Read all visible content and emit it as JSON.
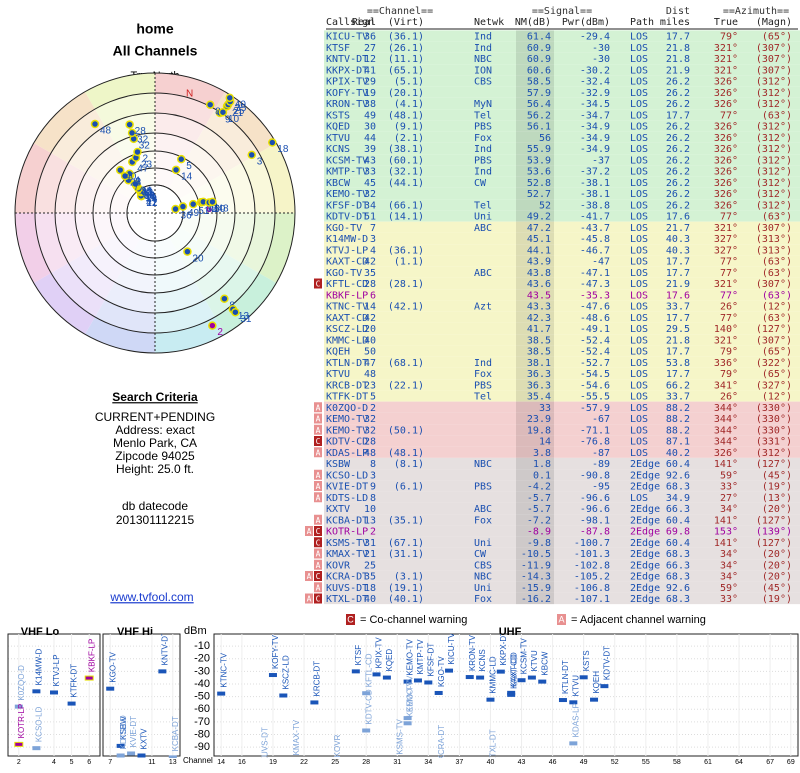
{
  "page": {
    "title": "home",
    "subtitle": "All Channels"
  },
  "polar": {
    "north_label": "TrueNorth",
    "n_label": "N"
  },
  "criteria": {
    "heading": "Search Criteria",
    "lines": [
      "CURRENT+PENDING",
      "Address: exact",
      "Menlo Park, CA",
      "Zipcode 94025",
      "Height: 25.0 ft."
    ],
    "db_label": "db datecode",
    "db_code": "201301112215"
  },
  "link": "www.tvfool.com",
  "table": {
    "groups": [
      "==Channel==",
      "==Signal==",
      "Dist",
      "==Azimuth=="
    ],
    "columns": [
      "Callsign",
      "Real",
      "(Virt)",
      "Netwk",
      "NM(dB)",
      "Pwr(dBm)",
      "Path",
      "miles",
      "True",
      "(Magn)"
    ],
    "rows": [
      {
        "callsign": "KICU-TV",
        "real": 36,
        "virt": "(36.1)",
        "netwk": "Ind",
        "nm": 61.4,
        "pwr": -29.4,
        "path": "LOS",
        "miles": 17.7,
        "true": "79°",
        "magn": "(65°)",
        "bg": "#d4f2d4"
      },
      {
        "callsign": "KTSF",
        "real": 27,
        "virt": "(26.1)",
        "netwk": "Ind",
        "nm": 60.9,
        "pwr": -30.0,
        "path": "LOS",
        "miles": 21.8,
        "true": "321°",
        "magn": "(307°)",
        "bg": "#d4f2d4"
      },
      {
        "callsign": "KNTV-DT",
        "real": 12,
        "virt": "(11.1)",
        "netwk": "NBC",
        "nm": 60.9,
        "pwr": -30.0,
        "path": "LOS",
        "miles": 21.8,
        "true": "321°",
        "magn": "(307°)",
        "bg": "#d4f2d4"
      },
      {
        "callsign": "KKPX-DT",
        "real": 41,
        "virt": "(65.1)",
        "netwk": "ION",
        "nm": 60.6,
        "pwr": -30.2,
        "path": "LOS",
        "miles": 21.9,
        "true": "321°",
        "magn": "(307°)",
        "bg": "#d4f2d4"
      },
      {
        "callsign": "KPIX-TV",
        "real": 29,
        "virt": "(5.1)",
        "netwk": "CBS",
        "nm": 58.5,
        "pwr": -32.4,
        "path": "LOS",
        "miles": 26.2,
        "true": "326°",
        "magn": "(312°)",
        "bg": "#d4f2d4"
      },
      {
        "callsign": "KOFY-TV",
        "real": 19,
        "virt": "(20.1)",
        "nm": 57.9,
        "pwr": -32.9,
        "path": "LOS",
        "miles": 26.2,
        "true": "326°",
        "magn": "(312°)",
        "bg": "#d4f2d4"
      },
      {
        "callsign": "KRON-TV",
        "real": 38,
        "virt": "(4.1)",
        "netwk": "MyN",
        "nm": 56.4,
        "pwr": -34.5,
        "path": "LOS",
        "miles": 26.2,
        "true": "326°",
        "magn": "(312°)",
        "bg": "#d4f2d4"
      },
      {
        "callsign": "KSTS",
        "real": 49,
        "virt": "(48.1)",
        "netwk": "Tel",
        "nm": 56.2,
        "pwr": -34.7,
        "path": "LOS",
        "miles": 17.7,
        "true": "77°",
        "magn": "(63°)",
        "bg": "#d4f2d4"
      },
      {
        "callsign": "KQED",
        "real": 30,
        "virt": "(9.1)",
        "netwk": "PBS",
        "nm": 56.1,
        "pwr": -34.9,
        "path": "LOS",
        "miles": 26.2,
        "true": "326°",
        "magn": "(312°)",
        "bg": "#d4f2d4"
      },
      {
        "callsign": "KTVU",
        "real": 44,
        "virt": "(2.1)",
        "netwk": "Fox",
        "nm": 56.0,
        "pwr": -34.9,
        "path": "LOS",
        "miles": 26.2,
        "true": "326°",
        "magn": "(312°)",
        "bg": "#d4f2d4"
      },
      {
        "callsign": "KCNS",
        "real": 39,
        "virt": "(38.1)",
        "netwk": "Ind",
        "nm": 55.9,
        "pwr": -34.9,
        "path": "LOS",
        "miles": 26.2,
        "true": "326°",
        "magn": "(312°)",
        "bg": "#d4f2d4"
      },
      {
        "callsign": "KCSM-TV",
        "real": 43,
        "virt": "(60.1)",
        "netwk": "PBS",
        "nm": 53.9,
        "pwr": -37.0,
        "path": "LOS",
        "miles": 26.2,
        "true": "326°",
        "magn": "(312°)",
        "bg": "#d4f2d4"
      },
      {
        "callsign": "KMTP-TV",
        "real": 33,
        "virt": "(32.1)",
        "netwk": "Ind",
        "nm": 53.6,
        "pwr": -37.2,
        "path": "LOS",
        "miles": 26.2,
        "true": "326°",
        "magn": "(312°)",
        "bg": "#d4f2d4"
      },
      {
        "callsign": "KBCW",
        "real": 45,
        "virt": "(44.1)",
        "netwk": "CW",
        "nm": 52.8,
        "pwr": -38.1,
        "path": "LOS",
        "miles": 26.2,
        "true": "326°",
        "magn": "(312°)",
        "bg": "#d4f2d4"
      },
      {
        "callsign": "KEMO-TV",
        "real": 32,
        "nm": 52.7,
        "pwr": -38.1,
        "path": "LOS",
        "miles": 26.2,
        "true": "326°",
        "magn": "(312°)",
        "bg": "#d4f2d4"
      },
      {
        "callsign": "KFSF-DT",
        "real": 34,
        "virt": "(66.1)",
        "netwk": "Tel",
        "nm": 52.0,
        "pwr": -38.8,
        "path": "LOS",
        "miles": 26.2,
        "true": "326°",
        "magn": "(312°)",
        "bg": "#d4f2d4"
      },
      {
        "callsign": "KDTV-DT",
        "real": 51,
        "virt": "(14.1)",
        "netwk": "Uni",
        "nm": 49.2,
        "pwr": -41.7,
        "path": "LOS",
        "miles": 17.6,
        "true": "77°",
        "magn": "(63°)",
        "bg": "#d4f2d4"
      },
      {
        "callsign": "KGO-TV",
        "real": 7,
        "netwk": "ABC",
        "nm": 47.2,
        "pwr": -43.7,
        "path": "LOS",
        "miles": 21.7,
        "true": "321°",
        "magn": "(307°)",
        "bg": "#f6f6c8"
      },
      {
        "callsign": "K14MW-D",
        "real": 3,
        "nm": 45.1,
        "pwr": -45.8,
        "path": "LOS",
        "miles": 40.3,
        "true": "327°",
        "magn": "(313°)",
        "bg": "#f6f6c8"
      },
      {
        "callsign": "KTVJ-LP",
        "real": 4,
        "virt": "(36.1)",
        "nm": 44.1,
        "pwr": -46.7,
        "path": "LOS",
        "miles": 40.3,
        "true": "327°",
        "magn": "(313°)",
        "bg": "#f6f6c8"
      },
      {
        "callsign": "KAXT-CD",
        "real": 42,
        "virt": "(1.1)",
        "nm": 43.9,
        "pwr": -47.0,
        "path": "LOS",
        "miles": 17.7,
        "true": "77°",
        "magn": "(63°)",
        "bg": "#f6f6c8"
      },
      {
        "callsign": "KGO-TV",
        "real": 35,
        "netwk": "ABC",
        "nm": 43.8,
        "pwr": -47.1,
        "path": "LOS",
        "miles": 17.7,
        "true": "77°",
        "magn": "(63°)",
        "bg": "#f6f6c8"
      },
      {
        "callsign": "KFTL-CD",
        "real": 28,
        "virt": "(28.1)",
        "nm": 43.6,
        "pwr": -47.3,
        "path": "LOS",
        "miles": 21.9,
        "true": "321°",
        "magn": "(307°)",
        "bg": "#f6f6c8",
        "flags": [
          "C"
        ]
      },
      {
        "callsign": "KBKF-LP",
        "real": 6,
        "nm": 43.5,
        "pwr": -35.3,
        "path": "LOS",
        "miles": 17.6,
        "true": "77°",
        "magn": "(63°)",
        "bg": "#f6f6c8",
        "text_color": "#a000a0"
      },
      {
        "callsign": "KTNC-TV",
        "real": 14,
        "virt": "(42.1)",
        "netwk": "Azt",
        "nm": 43.3,
        "pwr": -47.6,
        "path": "LOS",
        "miles": 33.7,
        "true": "26°",
        "magn": "(12°)",
        "bg": "#f6f6c8"
      },
      {
        "callsign": "KAXT-CD",
        "real": 42,
        "nm": 42.3,
        "pwr": -48.6,
        "path": "LOS",
        "miles": 17.7,
        "true": "77°",
        "magn": "(63°)",
        "bg": "#f6f6c8"
      },
      {
        "callsign": "KSCZ-LD",
        "real": 20,
        "nm": 41.7,
        "pwr": -49.1,
        "path": "LOS",
        "miles": 29.5,
        "true": "140°",
        "magn": "(127°)",
        "bg": "#f6f6c8"
      },
      {
        "callsign": "KMMC-LD",
        "real": 40,
        "nm": 38.5,
        "pwr": -52.4,
        "path": "LOS",
        "miles": 21.8,
        "true": "321°",
        "magn": "(307°)",
        "bg": "#f6f6c8"
      },
      {
        "callsign": "KQEH",
        "real": 50,
        "nm": 38.5,
        "pwr": -52.4,
        "path": "LOS",
        "miles": 17.7,
        "true": "79°",
        "magn": "(65°)",
        "bg": "#f6f6c8"
      },
      {
        "callsign": "KTLN-DT",
        "real": 47,
        "virt": "(68.1)",
        "netwk": "Ind",
        "nm": 38.1,
        "pwr": -52.7,
        "path": "LOS",
        "miles": 53.8,
        "true": "336°",
        "magn": "(322°)",
        "bg": "#f6f6c8"
      },
      {
        "callsign": "KTVU",
        "real": 48,
        "netwk": "Fox",
        "nm": 36.3,
        "pwr": -54.5,
        "path": "LOS",
        "miles": 17.7,
        "true": "79°",
        "magn": "(65°)",
        "bg": "#f6f6c8"
      },
      {
        "callsign": "KRCB-DT",
        "real": 23,
        "virt": "(22.1)",
        "netwk": "PBS",
        "nm": 36.3,
        "pwr": -54.6,
        "path": "LOS",
        "miles": 66.2,
        "true": "341°",
        "magn": "(327°)",
        "bg": "#f6f6c8"
      },
      {
        "callsign": "KTFK-DT",
        "real": 5,
        "netwk": "Tel",
        "nm": 35.4,
        "pwr": -55.5,
        "path": "LOS",
        "miles": 33.7,
        "true": "26°",
        "magn": "(12°)",
        "bg": "#f6f6c8"
      },
      {
        "callsign": "K0ZQO-D",
        "real": 2,
        "nm": 33.0,
        "pwr": -57.9,
        "path": "LOS",
        "miles": 88.2,
        "true": "344°",
        "magn": "(330°)",
        "bg": "#f4d0d0",
        "flags": [
          "A"
        ]
      },
      {
        "callsign": "KEMO-TV",
        "real": 32,
        "nm": 23.9,
        "pwr": -67.0,
        "path": "LOS",
        "miles": 88.2,
        "true": "344°",
        "magn": "(330°)",
        "bg": "#f4d0d0",
        "flags": [
          "A"
        ]
      },
      {
        "callsign": "KEMO-TV",
        "real": 32,
        "virt": "(50.1)",
        "nm": 19.8,
        "pwr": -71.1,
        "path": "LOS",
        "miles": 88.2,
        "true": "344°",
        "magn": "(330°)",
        "bg": "#f4d0d0",
        "flags": [
          "A"
        ]
      },
      {
        "callsign": "KDTV-CD",
        "real": 28,
        "nm": 14.0,
        "pwr": -76.8,
        "path": "LOS",
        "miles": 87.1,
        "true": "344°",
        "magn": "(331°)",
        "bg": "#f4d0d0",
        "flags": [
          "C"
        ]
      },
      {
        "callsign": "KDAS-LP",
        "real": 48,
        "virt": "(48.1)",
        "nm": 3.8,
        "pwr": -87.0,
        "path": "LOS",
        "miles": 40.2,
        "true": "326°",
        "magn": "(312°)",
        "bg": "#f4d0d0",
        "flags": [
          "A"
        ]
      },
      {
        "callsign": "KSBW",
        "real": 8,
        "virt": "(8.1)",
        "netwk": "NBC",
        "nm": 1.8,
        "pwr": -89.0,
        "path": "2Edge",
        "miles": 60.4,
        "true": "141°",
        "magn": "(127°)",
        "bg": "#e6e0e0"
      },
      {
        "callsign": "KCSO-LD",
        "real": 3,
        "nm": 0.1,
        "pwr": -90.8,
        "path": "2Edge",
        "miles": 92.6,
        "true": "59°",
        "magn": "(45°)",
        "bg": "#e6e0e0",
        "flags": [
          "A"
        ]
      },
      {
        "callsign": "KVIE-DT",
        "real": 9,
        "virt": "(6.1)",
        "netwk": "PBS",
        "nm": -4.2,
        "pwr": -95.0,
        "path": "2Edge",
        "miles": 68.3,
        "true": "33°",
        "magn": "(19°)",
        "bg": "#e6e0e0",
        "flags": [
          "A"
        ]
      },
      {
        "callsign": "KDTS-LD",
        "real": 8,
        "nm": -5.7,
        "pwr": -96.6,
        "path": "LOS",
        "miles": 34.9,
        "true": "27°",
        "magn": "(13°)",
        "bg": "#e6e0e0",
        "flags": [
          "A"
        ]
      },
      {
        "callsign": "KXTV",
        "real": 10,
        "netwk": "ABC",
        "nm": -5.7,
        "pwr": -96.6,
        "path": "2Edge",
        "miles": 66.3,
        "true": "34°",
        "magn": "(20°)",
        "bg": "#e6e0e0"
      },
      {
        "callsign": "KCBA-DT",
        "real": 13,
        "virt": "(35.1)",
        "netwk": "Fox",
        "nm": -7.2,
        "pwr": -98.1,
        "path": "2Edge",
        "miles": 60.4,
        "true": "141°",
        "magn": "(127°)",
        "bg": "#e6e0e0",
        "flags": [
          "A"
        ]
      },
      {
        "callsign": "KOTR-LP",
        "real": 2,
        "nm": -8.9,
        "pwr": -87.8,
        "path": "2Edge",
        "miles": 69.8,
        "true": "153°",
        "magn": "(139°)",
        "bg": "#e6e0e0",
        "flags": [
          "A",
          "C"
        ],
        "text_color": "#a000a0"
      },
      {
        "callsign": "KSMS-TV",
        "real": 31,
        "virt": "(67.1)",
        "netwk": "Uni",
        "nm": -9.8,
        "pwr": -100.7,
        "path": "2Edge",
        "miles": 60.4,
        "true": "141°",
        "magn": "(127°)",
        "bg": "#e6e0e0",
        "flags": [
          "C"
        ]
      },
      {
        "callsign": "KMAX-TV",
        "real": 21,
        "virt": "(31.1)",
        "netwk": "CW",
        "nm": -10.5,
        "pwr": -101.3,
        "path": "2Edge",
        "miles": 68.3,
        "true": "34°",
        "magn": "(20°)",
        "bg": "#e6e0e0",
        "flags": [
          "A"
        ]
      },
      {
        "callsign": "KOVR",
        "real": 25,
        "netwk": "CBS",
        "nm": -11.9,
        "pwr": -102.8,
        "path": "2Edge",
        "miles": 66.3,
        "true": "34°",
        "magn": "(20°)",
        "bg": "#e6e0e0",
        "flags": [
          "A"
        ]
      },
      {
        "callsign": "KCRA-DT",
        "real": 35,
        "virt": "(3.1)",
        "netwk": "NBC",
        "nm": -14.3,
        "pwr": -105.2,
        "path": "2Edge",
        "miles": 68.3,
        "true": "34°",
        "magn": "(20°)",
        "bg": "#e6e0e0",
        "flags": [
          "A",
          "C"
        ]
      },
      {
        "callsign": "KUVS-DT",
        "real": 18,
        "virt": "(19.1)",
        "netwk": "Uni",
        "nm": -15.9,
        "pwr": -106.8,
        "path": "2Edge",
        "miles": 92.6,
        "true": "59°",
        "magn": "(45°)",
        "bg": "#e6e0e0",
        "flags": [
          "A"
        ]
      },
      {
        "callsign": "KTXL-DT",
        "real": 40,
        "virt": "(40.1)",
        "netwk": "Fox",
        "nm": -16.2,
        "pwr": -107.1,
        "path": "2Edge",
        "miles": 68.3,
        "true": "33°",
        "magn": "(19°)",
        "bg": "#e6e0e0",
        "flags": [
          "A",
          "C"
        ]
      }
    ]
  },
  "legend": {
    "c_icon": "C",
    "cochannel": "= Co-channel warning",
    "a_icon": "A",
    "adjacent": "= Adjacent channel warning"
  },
  "spectrum": {
    "y_label": "dBm",
    "x_label": "Channel",
    "ylim": [
      -2,
      -97
    ],
    "yticks": [
      -10,
      -20,
      -30,
      -40,
      -50,
      -60,
      -70,
      -80,
      -90
    ],
    "bands": [
      {
        "label": "VHF Lo",
        "xlim": [
          1.5,
          6.5
        ],
        "xticks": [
          2,
          4,
          5,
          6
        ]
      },
      {
        "label": "VHF Hi",
        "xlim": [
          6.5,
          13.5
        ],
        "xticks": [
          7,
          11,
          13
        ]
      },
      {
        "label": "UHF",
        "xlim": [
          13.5,
          69.5
        ],
        "xticks": [
          14,
          16,
          19,
          22,
          25,
          28,
          31,
          34,
          37,
          40,
          43,
          46,
          49,
          52,
          55,
          58,
          61,
          64,
          67,
          69
        ]
      }
    ]
  }
}
